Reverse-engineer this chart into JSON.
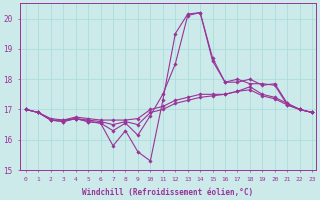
{
  "xlabel": "Windchill (Refroidissement éolien,°C)",
  "bg_color": "#cceaea",
  "line_color": "#993399",
  "grid_color": "#aadddd",
  "xlim_min": -0.5,
  "xlim_max": 23.3,
  "ylim": [
    15,
    20.5
  ],
  "yticks": [
    15,
    16,
    17,
    18,
    19,
    20
  ],
  "xticks": [
    0,
    1,
    2,
    3,
    4,
    5,
    6,
    7,
    8,
    9,
    10,
    11,
    12,
    13,
    14,
    15,
    16,
    17,
    18,
    19,
    20,
    21,
    22,
    23
  ],
  "lines": [
    [
      17.0,
      16.9,
      16.7,
      16.65,
      16.75,
      16.7,
      16.65,
      16.65,
      16.65,
      16.7,
      17.0,
      17.1,
      17.3,
      17.4,
      17.5,
      17.5,
      17.5,
      17.6,
      17.75,
      17.5,
      17.4,
      17.2,
      17.0,
      16.9
    ],
    [
      17.0,
      16.9,
      16.65,
      16.65,
      16.7,
      16.65,
      16.6,
      16.5,
      16.6,
      16.5,
      16.9,
      17.0,
      17.2,
      17.3,
      17.4,
      17.45,
      17.5,
      17.6,
      17.65,
      17.45,
      17.35,
      17.15,
      17.0,
      16.9
    ],
    [
      17.0,
      16.9,
      16.65,
      16.6,
      16.7,
      16.6,
      16.55,
      16.3,
      16.55,
      16.15,
      16.8,
      17.5,
      18.5,
      20.1,
      20.2,
      18.6,
      17.9,
      17.9,
      18.0,
      17.8,
      17.85,
      17.2,
      17.0,
      16.9
    ],
    [
      17.0,
      16.9,
      16.65,
      16.6,
      16.7,
      16.6,
      16.55,
      15.8,
      16.3,
      15.6,
      15.3,
      17.3,
      19.5,
      20.15,
      20.2,
      18.7,
      17.9,
      18.0,
      17.85,
      17.85,
      17.8,
      17.15,
      17.0,
      16.9
    ]
  ]
}
